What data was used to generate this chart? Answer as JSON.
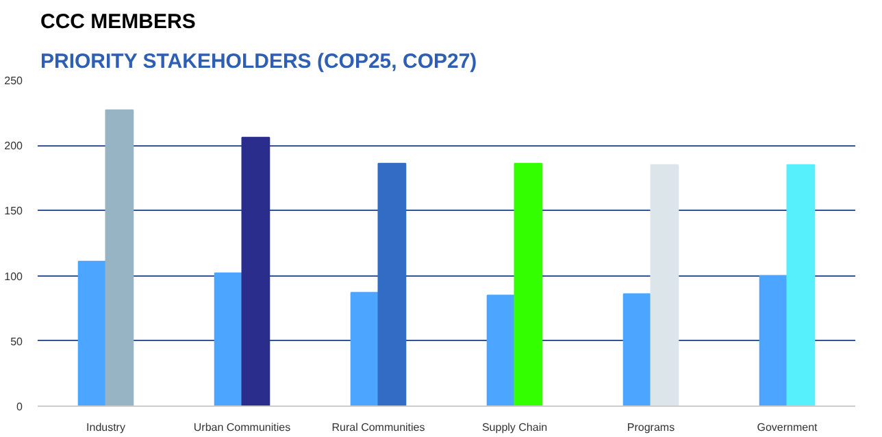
{
  "chart_data": {
    "type": "bar",
    "title": "CCC MEMBERS",
    "subtitle": "PRIORITY STAKEHOLDERS (COP25, COP27)",
    "categories": [
      "Industry",
      "Urban Communities",
      "Rural Communities",
      "Supply Chain",
      "Programs",
      "Government"
    ],
    "series": [
      {
        "color": "#4ca6ff",
        "values": [
          111,
          102,
          87,
          85,
          86,
          100
        ]
      },
      {
        "colors": [
          "#96b4c3",
          "#2a2d8c",
          "#336cc4",
          "#33ff00",
          "#dbe5ea",
          "#55f0fb"
        ],
        "values": [
          227,
          206,
          186,
          186,
          185,
          185
        ]
      }
    ],
    "ylim": [
      0,
      250
    ],
    "yticks": [
      0,
      50,
      100,
      150,
      200,
      250
    ],
    "grid": "y"
  }
}
